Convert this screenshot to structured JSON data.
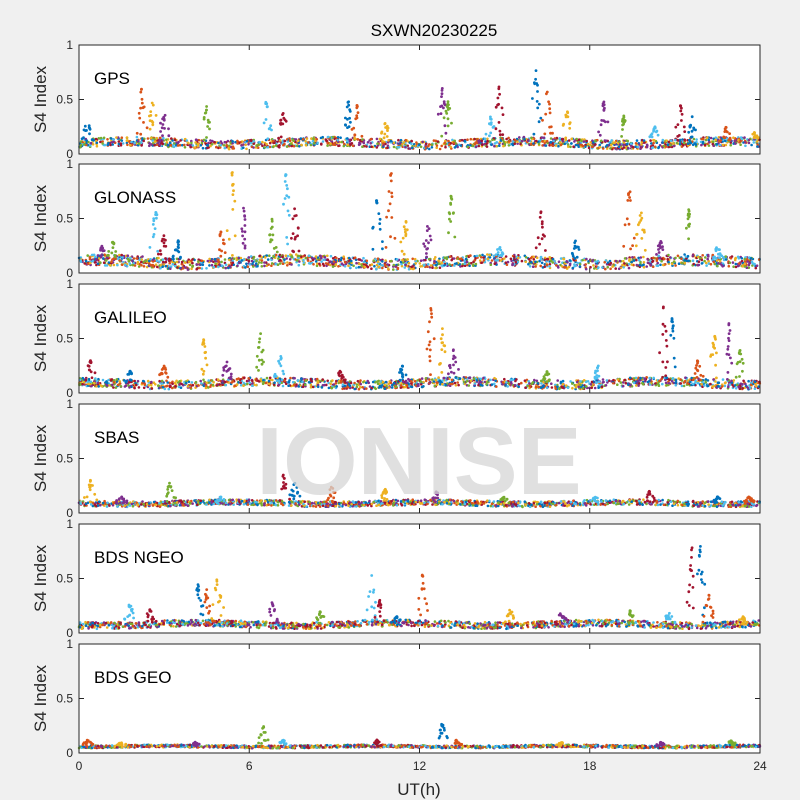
{
  "chart_data": {
    "type": "scatter",
    "title": "SXWN20230225",
    "xlabel": "UT(h)",
    "ylabel": "S4 Index",
    "xlim": [
      0,
      24
    ],
    "xticks": [
      0,
      6,
      12,
      18,
      24
    ],
    "xtick_labels": [
      "0",
      "6",
      "12",
      "18",
      "24"
    ],
    "ylim": [
      0,
      1
    ],
    "yticks": [
      0,
      0.5,
      1
    ],
    "ytick_labels": [
      "0",
      "0.5",
      "1"
    ],
    "grid": false,
    "legend": "none",
    "watermark": "IONISE",
    "colors": [
      "#0072BD",
      "#D95319",
      "#EDB120",
      "#7E2F8E",
      "#77AC30",
      "#4DBEEE",
      "#A2142F"
    ],
    "panels": [
      {
        "name": "GPS",
        "baseline": 0.1,
        "noise": 0.04,
        "spikes": [
          [
            0.3,
            0.3
          ],
          [
            2.2,
            0.6
          ],
          [
            2.6,
            0.5
          ],
          [
            3.0,
            0.4
          ],
          [
            4.5,
            0.45
          ],
          [
            6.6,
            0.5
          ],
          [
            7.2,
            0.4
          ],
          [
            9.5,
            0.5
          ],
          [
            9.8,
            0.45
          ],
          [
            10.8,
            0.3
          ],
          [
            12.8,
            0.62
          ],
          [
            13.0,
            0.5
          ],
          [
            14.5,
            0.35
          ],
          [
            14.8,
            0.62
          ],
          [
            16.1,
            0.8
          ],
          [
            16.5,
            0.6
          ],
          [
            17.2,
            0.4
          ],
          [
            18.5,
            0.5
          ],
          [
            19.2,
            0.35
          ],
          [
            20.3,
            0.25
          ],
          [
            21.2,
            0.45
          ],
          [
            21.6,
            0.35
          ],
          [
            22.8,
            0.25
          ],
          [
            23.8,
            0.2
          ]
        ]
      },
      {
        "name": "GLONASS",
        "baseline": 0.1,
        "noise": 0.05,
        "spikes": [
          [
            0.8,
            0.25
          ],
          [
            1.2,
            0.3
          ],
          [
            2.7,
            0.6
          ],
          [
            3.0,
            0.35
          ],
          [
            3.5,
            0.3
          ],
          [
            5.0,
            0.38
          ],
          [
            5.4,
            0.95
          ],
          [
            5.8,
            0.6
          ],
          [
            6.8,
            0.5
          ],
          [
            7.3,
            0.95
          ],
          [
            7.6,
            0.7
          ],
          [
            10.5,
            0.7
          ],
          [
            11.0,
            0.95
          ],
          [
            11.5,
            0.5
          ],
          [
            12.3,
            0.45
          ],
          [
            13.1,
            0.75
          ],
          [
            14.8,
            0.25
          ],
          [
            16.3,
            0.6
          ],
          [
            17.5,
            0.3
          ],
          [
            19.4,
            0.8
          ],
          [
            19.8,
            0.6
          ],
          [
            20.5,
            0.3
          ],
          [
            21.5,
            0.6
          ],
          [
            22.5,
            0.25
          ]
        ]
      },
      {
        "name": "GALILEO",
        "baseline": 0.09,
        "noise": 0.04,
        "spikes": [
          [
            0.4,
            0.3
          ],
          [
            1.8,
            0.2
          ],
          [
            3.0,
            0.25
          ],
          [
            4.4,
            0.5
          ],
          [
            5.2,
            0.3
          ],
          [
            6.4,
            0.55
          ],
          [
            7.1,
            0.35
          ],
          [
            9.2,
            0.2
          ],
          [
            11.4,
            0.25
          ],
          [
            12.4,
            0.8
          ],
          [
            12.8,
            0.6
          ],
          [
            13.2,
            0.4
          ],
          [
            16.5,
            0.2
          ],
          [
            18.3,
            0.25
          ],
          [
            20.6,
            0.8
          ],
          [
            20.9,
            0.7
          ],
          [
            21.8,
            0.3
          ],
          [
            22.4,
            0.55
          ],
          [
            22.9,
            0.65
          ],
          [
            23.3,
            0.4
          ]
        ]
      },
      {
        "name": "SBAS",
        "baseline": 0.09,
        "noise": 0.025,
        "spikes": [
          [
            0.4,
            0.3
          ],
          [
            1.5,
            0.15
          ],
          [
            3.2,
            0.28
          ],
          [
            5.0,
            0.15
          ],
          [
            7.2,
            0.35
          ],
          [
            7.6,
            0.28
          ],
          [
            8.9,
            0.25
          ],
          [
            10.8,
            0.22
          ],
          [
            12.6,
            0.2
          ],
          [
            15.0,
            0.15
          ],
          [
            18.2,
            0.15
          ],
          [
            20.1,
            0.2
          ],
          [
            22.5,
            0.15
          ],
          [
            23.6,
            0.15
          ]
        ]
      },
      {
        "name": "BDS NGEO",
        "baseline": 0.08,
        "noise": 0.03,
        "spikes": [
          [
            1.8,
            0.28
          ],
          [
            2.5,
            0.22
          ],
          [
            4.2,
            0.45
          ],
          [
            4.5,
            0.4
          ],
          [
            4.9,
            0.55
          ],
          [
            6.8,
            0.28
          ],
          [
            8.5,
            0.2
          ],
          [
            10.3,
            0.55
          ],
          [
            10.6,
            0.3
          ],
          [
            11.2,
            0.15
          ],
          [
            12.1,
            0.55
          ],
          [
            15.2,
            0.22
          ],
          [
            17.0,
            0.2
          ],
          [
            19.4,
            0.22
          ],
          [
            20.8,
            0.2
          ],
          [
            21.6,
            0.8
          ],
          [
            21.9,
            0.8
          ],
          [
            22.2,
            0.35
          ],
          [
            23.4,
            0.15
          ]
        ]
      },
      {
        "name": "BDS GEO",
        "baseline": 0.06,
        "noise": 0.012,
        "spikes": [
          [
            0.3,
            0.12
          ],
          [
            1.5,
            0.1
          ],
          [
            4.1,
            0.1
          ],
          [
            6.5,
            0.25
          ],
          [
            7.2,
            0.12
          ],
          [
            10.5,
            0.12
          ],
          [
            12.8,
            0.28
          ],
          [
            13.3,
            0.12
          ],
          [
            17.0,
            0.1
          ],
          [
            20.5,
            0.1
          ],
          [
            23.0,
            0.12
          ]
        ]
      }
    ]
  }
}
